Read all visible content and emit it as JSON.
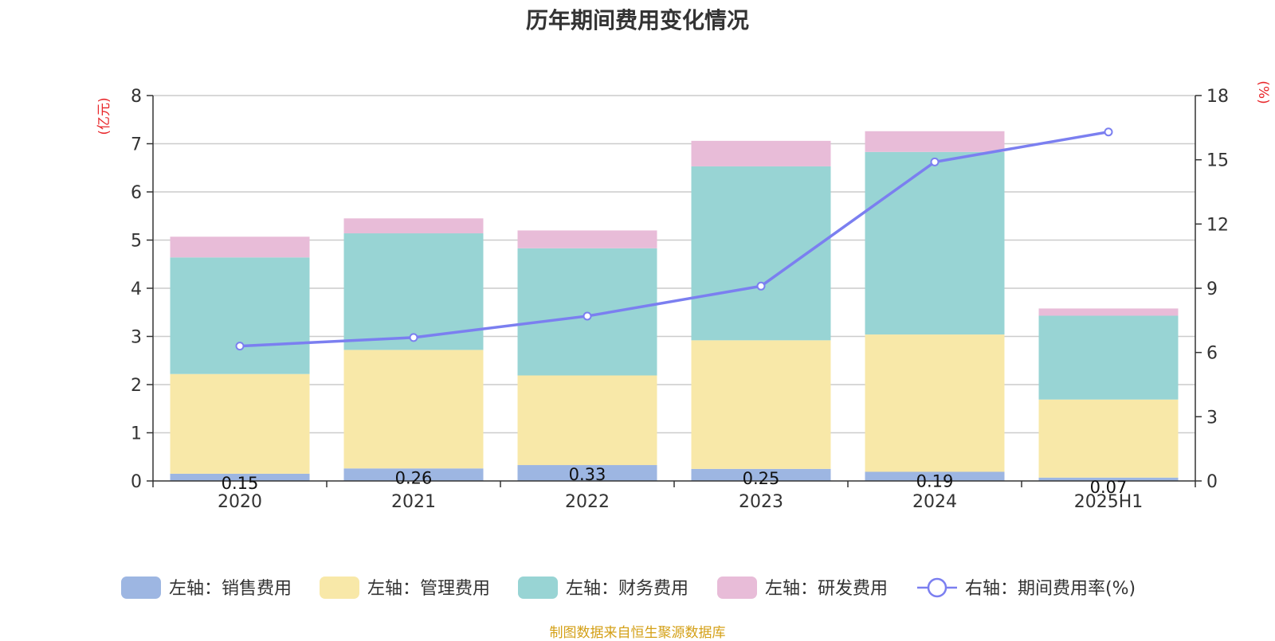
{
  "chart_data": {
    "type": "bar",
    "stacked": true,
    "title": "历年期间费用变化情况",
    "categories": [
      "2020",
      "2021",
      "2022",
      "2023",
      "2024",
      "2025H1"
    ],
    "left_axis": {
      "unit": "(亿元)",
      "ylim": [
        0,
        8
      ],
      "ticks": [
        "0",
        "1",
        "2",
        "3",
        "4",
        "5",
        "6",
        "7",
        "8"
      ]
    },
    "right_axis": {
      "unit": "(%)",
      "ylim": [
        0,
        18
      ],
      "ticks": [
        "0",
        "3",
        "6",
        "9",
        "12",
        "15",
        "18"
      ]
    },
    "grid": true,
    "legend_position": "bottom",
    "series": [
      {
        "name": "左轴：销售费用",
        "axis": "left",
        "color": "#9db6e2",
        "values": [
          0.15,
          0.26,
          0.33,
          0.25,
          0.19,
          0.07
        ],
        "labels": [
          "0.15",
          "0.26",
          "0.33",
          "0.25",
          "0.19",
          "0.07"
        ]
      },
      {
        "name": "左轴：管理费用",
        "axis": "left",
        "color": "#f8e8a8",
        "values": [
          2.07,
          2.46,
          1.86,
          2.67,
          2.85,
          1.62
        ]
      },
      {
        "name": "左轴：财务费用",
        "axis": "left",
        "color": "#98d4d4",
        "values": [
          2.42,
          2.42,
          2.64,
          3.61,
          3.79,
          1.74
        ]
      },
      {
        "name": "左轴：研发费用",
        "axis": "left",
        "color": "#e8bcd8",
        "values": [
          0.43,
          0.31,
          0.37,
          0.53,
          0.43,
          0.15
        ]
      },
      {
        "name": "右轴：期间费用率(%)",
        "axis": "right",
        "type": "line",
        "color": "#7b7ff0",
        "values": [
          6.3,
          6.7,
          7.7,
          9.1,
          14.9,
          16.3
        ]
      }
    ],
    "source": "制图数据来自恒生聚源数据库"
  }
}
